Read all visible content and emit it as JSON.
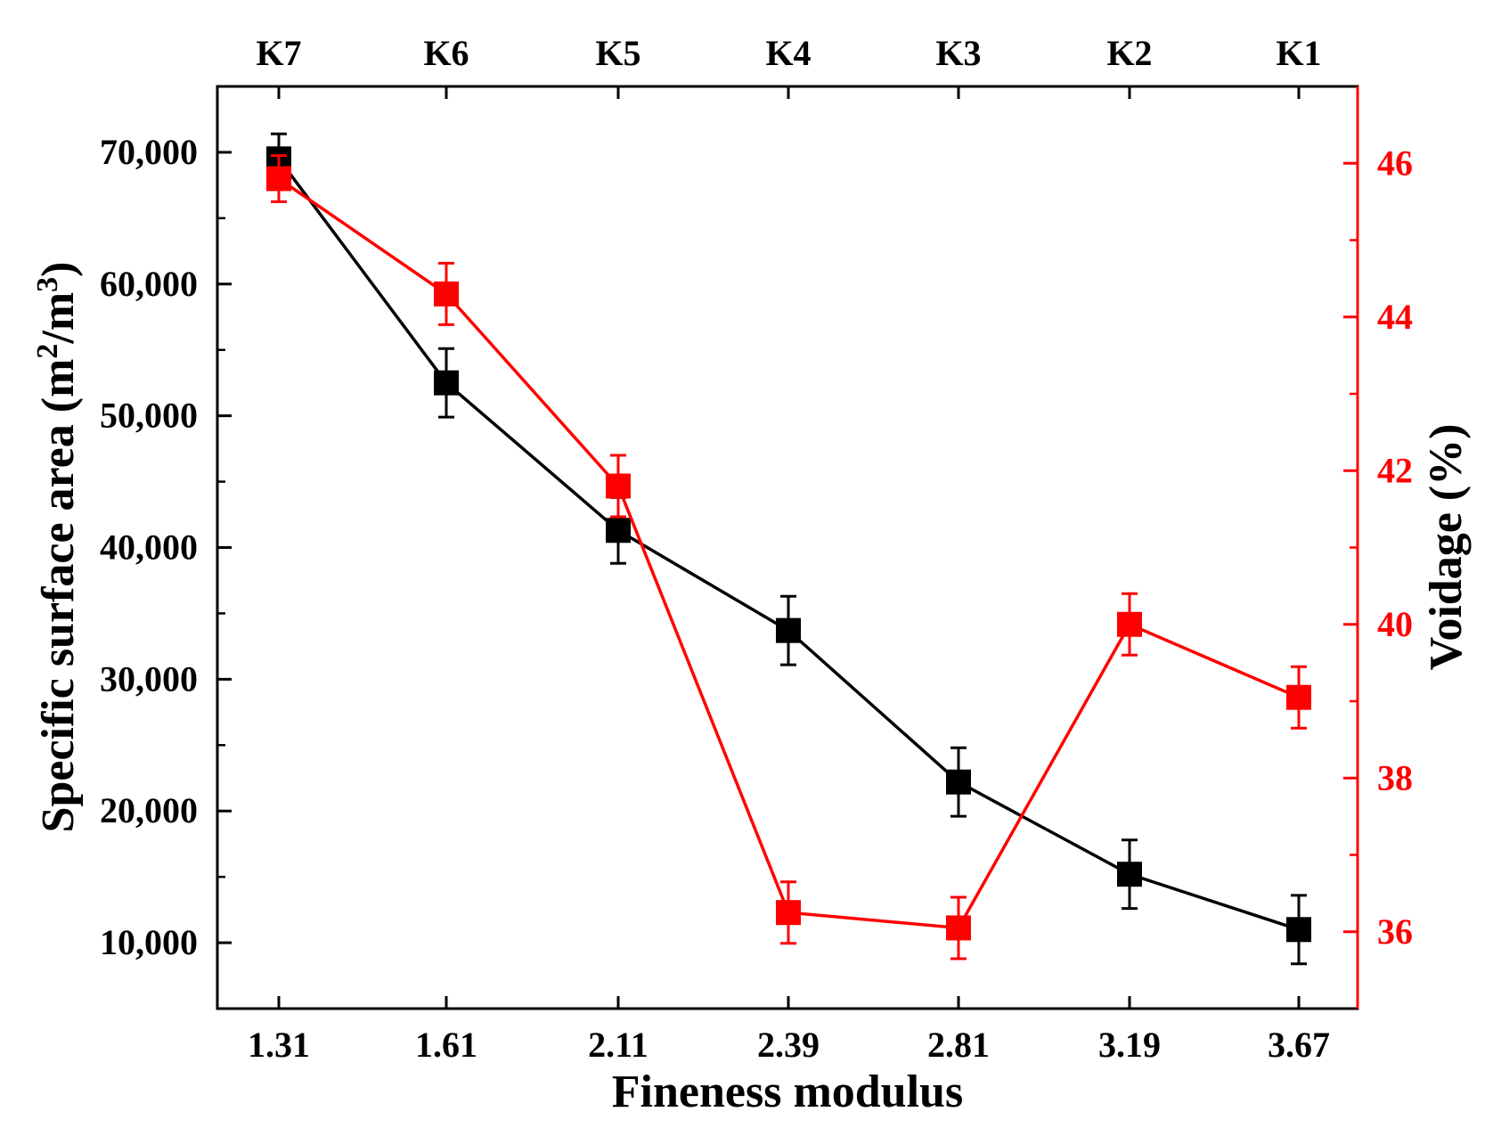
{
  "chart_data": {
    "type": "line",
    "xlabel": "Fineness modulus",
    "x_categories": [
      "1.31",
      "1.61",
      "2.11",
      "2.39",
      "2.81",
      "3.19",
      "3.67"
    ],
    "top_categories": [
      "K7",
      "K6",
      "K5",
      "K4",
      "K3",
      "K2",
      "K1"
    ],
    "ylabel_left": {
      "prefix": "Specific surface area (m",
      "sup1": "2",
      "mid": "/m",
      "sup2": "3",
      "suffix": ")"
    },
    "ylabel_right": "Voidage (%)",
    "ylim_left": [
      5000,
      75000
    ],
    "ylim_right": [
      35,
      47
    ],
    "yticks_left": [
      10000,
      20000,
      30000,
      40000,
      50000,
      60000,
      70000
    ],
    "yticks_left_labels": [
      "10,000",
      "20,000",
      "30,000",
      "40,000",
      "50,000",
      "60,000",
      "70,000"
    ],
    "yticks_right": [
      36,
      38,
      40,
      42,
      44,
      46
    ],
    "yticks_right_labels": [
      "36",
      "38",
      "40",
      "42",
      "44",
      "46"
    ],
    "series": [
      {
        "name": "Specific surface area",
        "axis": "left",
        "color": "#000000",
        "values": [
          69500,
          52500,
          41300,
          33700,
          22200,
          15200,
          11000
        ],
        "errors": [
          1900,
          2600,
          2500,
          2600,
          2600,
          2600,
          2600
        ]
      },
      {
        "name": "Voidage",
        "axis": "right",
        "color": "#ff0000",
        "values": [
          45.8,
          44.3,
          41.8,
          36.25,
          36.05,
          40.0,
          39.05
        ],
        "errors": [
          0.3,
          0.4,
          0.4,
          0.4,
          0.4,
          0.4,
          0.4
        ]
      }
    ]
  }
}
